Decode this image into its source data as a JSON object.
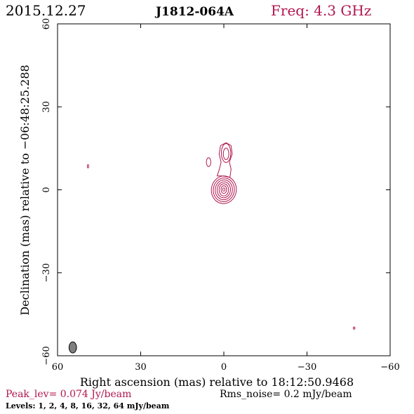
{
  "header": {
    "date": "2015.12.27",
    "source": "J1812-064A",
    "freq": "Freq: 4.3 GHz"
  },
  "footer": {
    "peak": "Peak_lev=  0.074 Jy/beam",
    "rms": "Rms_noise=  0.2 mJy/beam",
    "levels": "Levels:   1,   2,   4,   8,  16,  32,  64 mJy/beam"
  },
  "colors": {
    "contour": "#b0174f",
    "accent_text": "#b0174f",
    "text": "#000000",
    "beam": "#808080"
  },
  "chart_data": {
    "type": "contour",
    "xlabel": "Right ascension (mas) relative to 18:12:50.9468",
    "ylabel": "Declination (mas) relative to −06:48:25.288",
    "xlim": [
      60,
      -60
    ],
    "ylim": [
      -60,
      60
    ],
    "x_ticks": [
      60,
      30,
      0,
      -30,
      -60
    ],
    "y_ticks": [
      -60,
      -30,
      0,
      30,
      60
    ],
    "x_tick_labels": [
      "60",
      "30",
      "0",
      "−30",
      "−60"
    ],
    "y_tick_labels": [
      "−60",
      "−30",
      "0",
      "30",
      "60"
    ],
    "peak_jy_per_beam": 0.074,
    "rms_mjy_per_beam": 0.2,
    "levels_mjy_per_beam": [
      1,
      2,
      4,
      8,
      16,
      32,
      64
    ],
    "contours": [
      {
        "cx": 0,
        "cy": 0,
        "rx": 4.5,
        "ry": 5.0,
        "tilt": 8
      },
      {
        "cx": 0,
        "cy": 0,
        "rx": 3.8,
        "ry": 4.3,
        "tilt": 8
      },
      {
        "cx": 0,
        "cy": 0,
        "rx": 3.1,
        "ry": 3.6,
        "tilt": 6
      },
      {
        "cx": 0,
        "cy": 0,
        "rx": 2.4,
        "ry": 2.9,
        "tilt": 4
      },
      {
        "cx": 0,
        "cy": 0,
        "rx": 1.7,
        "ry": 2.2,
        "tilt": 0
      },
      {
        "cx": 0,
        "cy": 0.1,
        "rx": 1.0,
        "ry": 1.4,
        "tilt": 0
      },
      {
        "cx": 0,
        "cy": 0.1,
        "rx": 0.4,
        "ry": 0.6,
        "tilt": 0
      },
      {
        "cx": -0.8,
        "cy": 13.3,
        "rx": 1.7,
        "ry": 3.4,
        "tilt": 0
      },
      {
        "cx": -0.8,
        "cy": 13.0,
        "rx": 1.0,
        "ry": 2.1,
        "tilt": 0
      },
      {
        "cx": 5.5,
        "cy": 10.0,
        "rx": 0.8,
        "ry": 1.6,
        "tilt": 0
      },
      {
        "cx": 49.0,
        "cy": 8.5,
        "rx": 0.25,
        "ry": 0.6,
        "tilt": 0
      },
      {
        "cx": -47.0,
        "cy": -50.0,
        "rx": 0.3,
        "ry": 0.4,
        "tilt": 0
      }
    ],
    "jet_outline_mas": [
      [
        0.3,
        5.0
      ],
      [
        -2.2,
        4.5
      ],
      [
        -2.6,
        7.5
      ],
      [
        -2.0,
        10.0
      ],
      [
        -3.0,
        13.0
      ],
      [
        -2.6,
        16.0
      ],
      [
        -0.8,
        17.0
      ],
      [
        1.2,
        16.0
      ],
      [
        1.7,
        13.0
      ],
      [
        1.0,
        10.0
      ],
      [
        1.6,
        7.5
      ],
      [
        2.4,
        5.0
      ]
    ],
    "beam": {
      "x": 54.5,
      "y": -57.0,
      "bmaj": 4.0,
      "bmin": 2.7,
      "pa": 0
    }
  }
}
